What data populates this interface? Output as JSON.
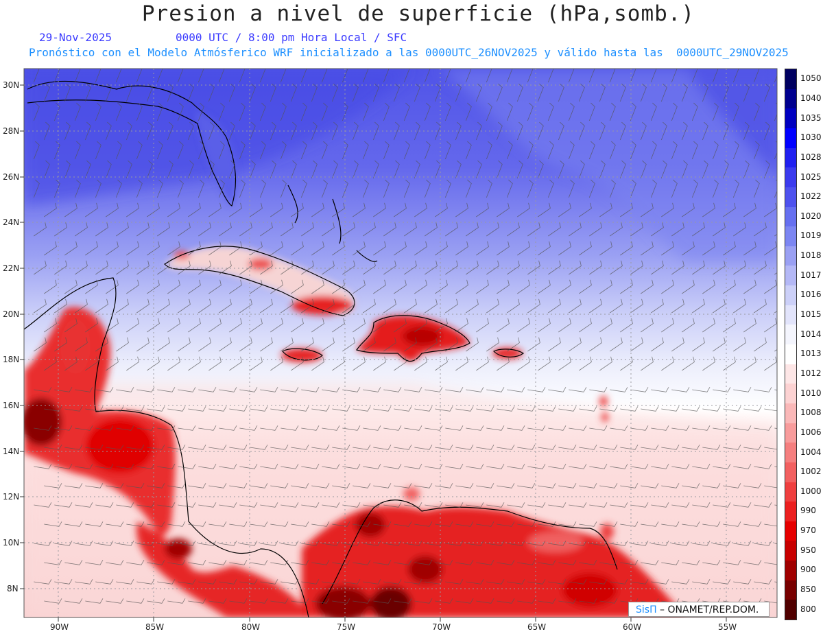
{
  "title": "Presion a nivel de superficie (hPa,somb.)",
  "date": "29-Nov-2025",
  "time_info": "0000 UTC / 8:00 pm Hora Local / SFC",
  "forecast_info": "Pronóstico con el Modelo Atmósferico WRF inicializado a las 0000UTC_26NOV2025 y válido hasta las  0000UTC_29NOV2025",
  "credit": {
    "brand": "SisΠ",
    "org": " – ONAMET/REP.DOM."
  },
  "lat_labels": [
    "30N",
    "28N",
    "26N",
    "24N",
    "22N",
    "20N",
    "18N",
    "16N",
    "14N",
    "12N",
    "10N",
    "8N"
  ],
  "lon_labels": [
    "90W",
    "85W",
    "80W",
    "75W",
    "70W",
    "65W",
    "60W",
    "55W"
  ],
  "colorbar": {
    "labels": [
      "1050",
      "1040",
      "1035",
      "1030",
      "1028",
      "1025",
      "1022",
      "1020",
      "1019",
      "1018",
      "1017",
      "1016",
      "1015",
      "1014",
      "1013",
      "1012",
      "1010",
      "1008",
      "1006",
      "1004",
      "1002",
      "1000",
      "990",
      "970",
      "950",
      "900",
      "850",
      "800"
    ],
    "colors": [
      "#000060",
      "#00008f",
      "#0000c0",
      "#0000ff",
      "#2020f0",
      "#3b3bee",
      "#4e52ee",
      "#6670f0",
      "#7c86f2",
      "#9aa0f3",
      "#b4b8f6",
      "#ccd0f8",
      "#e2e4fb",
      "#f4f5fd",
      "#ffffff",
      "#fde6e6",
      "#fcd2d2",
      "#fab8b8",
      "#f89c9c",
      "#f57f7f",
      "#f26060",
      "#ef3f3f",
      "#ec2020",
      "#e60000",
      "#c80000",
      "#a00000",
      "#780000",
      "#500000"
    ]
  },
  "colors": {
    "ocean_north": "#5a5ee8",
    "ocean_mid": "#aab0f4",
    "ocean_white": "#f6f6fd",
    "ocean_south": "#fbdada",
    "land_red": "#e51b1b",
    "coast": "#000000",
    "grid": "#9a9aa0"
  }
}
